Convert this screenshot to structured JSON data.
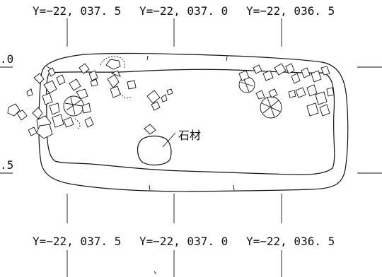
{
  "grid": {
    "top_labels": [
      "Y=−22, 037. 5",
      "Y=−22, 037. 0",
      "Y=−22, 036. 5"
    ],
    "bottom_labels": [
      "Y=−22, 037. 5",
      "Y=−22, 037. 0",
      "Y=−22, 036. 5"
    ],
    "left_labels": [
      ".0",
      ".5"
    ]
  },
  "annotations": {
    "stone_material": "石材"
  }
}
